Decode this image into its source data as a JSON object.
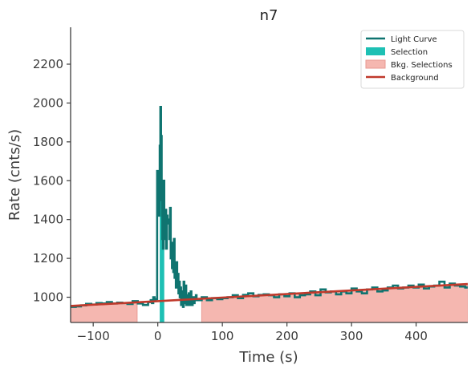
{
  "chart_data": {
    "type": "line",
    "title": "n7",
    "xlabel": "Time (s)",
    "ylabel": "Rate (cnts/s)",
    "xlim": [
      -135,
      480
    ],
    "ylim": [
      870,
      2390
    ],
    "xticks": [
      -100,
      0,
      100,
      200,
      300,
      400
    ],
    "xtick_labels": [
      "−100",
      "0",
      "100",
      "200",
      "300",
      "400"
    ],
    "yticks": [
      1000,
      1200,
      1400,
      1600,
      1800,
      2000,
      2200
    ],
    "ytick_labels": [
      "1000",
      "1200",
      "1400",
      "1600",
      "1800",
      "2000",
      "2200"
    ],
    "grid": false,
    "legend_position": "top-right",
    "legend": [
      {
        "label": "Light Curve",
        "kind": "line",
        "color": "#0f7470"
      },
      {
        "label": "Selection",
        "kind": "patch",
        "color": "#1ec0b4"
      },
      {
        "label": "Bkg. Selections",
        "kind": "patch",
        "color": "#f5b7b0"
      },
      {
        "label": "Background",
        "kind": "line",
        "color": "#c0392b"
      }
    ],
    "colors": {
      "light_curve": "#0f7470",
      "selection": "#1ec0b4",
      "bkg_selection": "#f5b7b0",
      "background": "#c0392b"
    },
    "selection": {
      "x": [
        3,
        10
      ]
    },
    "background_selections": [
      {
        "x": [
          -135,
          -32
        ]
      },
      {
        "x": [
          68,
          480
        ]
      }
    ],
    "background": {
      "x": [
        -135,
        480
      ],
      "y": [
        955,
        1068
      ]
    },
    "series": [
      {
        "name": "Light Curve",
        "style": "step",
        "x": [
          -135,
          -127,
          -119,
          -111,
          -103,
          -95,
          -87,
          -79,
          -71,
          -63,
          -55,
          -47,
          -39,
          -31,
          -23,
          -15,
          -11,
          -9,
          -7,
          -5,
          -3,
          -1,
          1,
          3,
          4,
          5,
          6,
          7,
          8,
          9,
          10,
          11,
          12,
          13,
          14,
          15,
          16,
          17,
          18,
          19,
          20,
          21,
          22,
          23,
          24,
          25,
          26,
          27,
          28,
          29,
          30,
          31,
          32,
          33,
          34,
          35,
          36,
          37,
          38,
          39,
          40,
          41,
          42,
          43,
          44,
          45,
          46,
          47,
          48,
          49,
          50,
          51,
          52,
          53,
          54,
          55,
          56,
          57,
          58,
          59,
          60,
          68,
          76,
          84,
          92,
          100,
          108,
          116,
          124,
          132,
          140,
          148,
          156,
          164,
          172,
          180,
          188,
          196,
          204,
          212,
          220,
          228,
          236,
          244,
          252,
          260,
          268,
          276,
          284,
          292,
          300,
          308,
          316,
          324,
          332,
          340,
          348,
          356,
          364,
          372,
          380,
          388,
          396,
          404,
          412,
          420,
          428,
          436,
          444,
          452,
          460,
          468,
          476,
          480
        ],
        "y": [
          950,
          953,
          958,
          966,
          962,
          970,
          968,
          975,
          968,
          972,
          970,
          965,
          980,
          968,
          960,
          975,
          985,
          970,
          1000,
          980,
          990,
          1650,
          1420,
          1780,
          1980,
          1830,
          1500,
          1300,
          1250,
          1600,
          1350,
          1300,
          1450,
          1250,
          1420,
          1380,
          1380,
          1400,
          1300,
          1460,
          1200,
          1280,
          1150,
          1250,
          1130,
          1300,
          1100,
          1150,
          1050,
          1180,
          1050,
          1120,
          1020,
          1080,
          1000,
          1050,
          960,
          1030,
          1010,
          950,
          1080,
          970,
          1000,
          1060,
          960,
          1010,
          960,
          1000,
          1020,
          990,
          960,
          1030,
          995,
          960,
          985,
          1000,
          970,
          990,
          995,
          1010,
          985,
          1000,
          985,
          995,
          990,
          995,
          1000,
          1010,
          995,
          1012,
          1020,
          1005,
          1012,
          1015,
          1010,
          1000,
          1015,
          1005,
          1020,
          1000,
          1010,
          1015,
          1030,
          1010,
          1040,
          1025,
          1030,
          1015,
          1030,
          1020,
          1045,
          1030,
          1020,
          1040,
          1050,
          1030,
          1035,
          1050,
          1060,
          1045,
          1050,
          1060,
          1050,
          1065,
          1045,
          1055,
          1060,
          1080,
          1050,
          1070,
          1060,
          1055,
          1050,
          1050
        ]
      }
    ]
  }
}
